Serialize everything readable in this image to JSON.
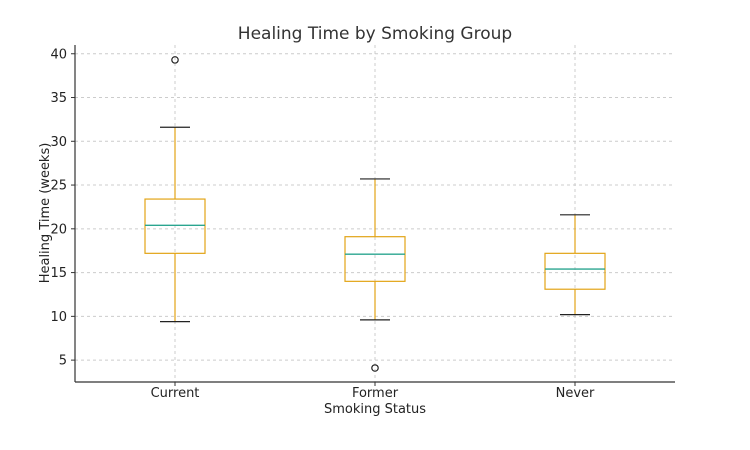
{
  "chart_data": {
    "type": "box",
    "title": "Healing Time by Smoking Group",
    "xlabel": "Smoking Status",
    "ylabel": "Healing Time (weeks)",
    "categories": [
      "Current",
      "Former",
      "Never"
    ],
    "ylim": [
      2.5,
      41
    ],
    "yticks": [
      5,
      10,
      15,
      20,
      25,
      30,
      35,
      40
    ],
    "grid": true,
    "boxes": [
      {
        "category": "Current",
        "whisker_low": 9.4,
        "q1": 17.2,
        "median": 20.4,
        "q3": 23.4,
        "whisker_high": 31.6,
        "outliers": [
          39.3
        ]
      },
      {
        "category": "Former",
        "whisker_low": 9.6,
        "q1": 14.0,
        "median": 17.1,
        "q3": 19.1,
        "whisker_high": 25.7,
        "outliers": [
          4.1
        ]
      },
      {
        "category": "Never",
        "whisker_low": 10.2,
        "q1": 13.1,
        "median": 15.4,
        "q3": 17.2,
        "whisker_high": 21.6,
        "outliers": []
      }
    ],
    "colors": {
      "box": "#e2a416",
      "whisker": "#e2a416",
      "cap": "#222222",
      "median": "#2aa58f",
      "outlier": "#222222"
    }
  }
}
